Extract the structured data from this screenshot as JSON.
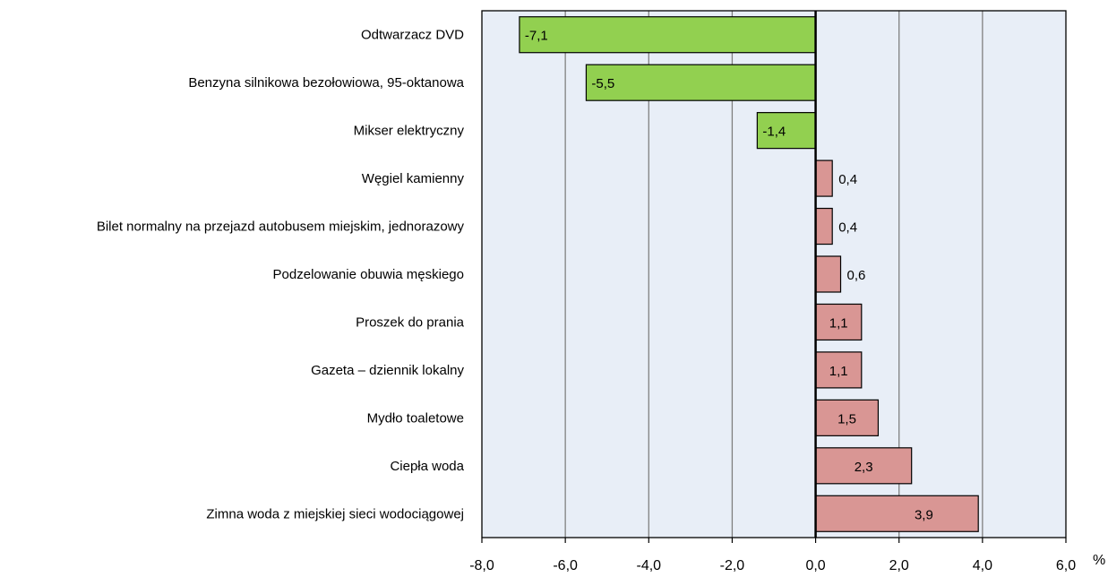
{
  "chart_data": {
    "type": "bar",
    "orientation": "horizontal",
    "categories": [
      "Odtwarzacz DVD",
      "Benzyna silnikowa bezołowiowa, 95-oktanowa",
      "Mikser elektryczny",
      "Węgiel kamienny",
      "Bilet normalny na przejazd autobusem miejskim, jednorazowy",
      "Podzelowanie obuwia męskiego",
      "Proszek do prania",
      "Gazeta – dziennik lokalny",
      "Mydło toaletowe",
      "Ciepła woda",
      "Zimna woda z miejskiej sieci wodociągowej"
    ],
    "values": [
      -7.1,
      -5.5,
      -1.4,
      0.4,
      0.4,
      0.6,
      1.1,
      1.1,
      1.5,
      2.3,
      3.9
    ],
    "data_labels": [
      "-7,1",
      "-5,5",
      "-1,4",
      "0,4",
      "0,4",
      "0,6",
      "1,1",
      "1,1",
      "1,5",
      "2,3",
      "3,9"
    ],
    "xlim": [
      -8,
      6
    ],
    "x_ticks": [
      -8,
      -6,
      -4,
      -2,
      0,
      2,
      4,
      6
    ],
    "x_tick_labels": [
      "-8,0",
      "-6,0",
      "-4,0",
      "-2,0",
      "0,0",
      "2,0",
      "4,0",
      "6,0"
    ],
    "x_unit": "%",
    "grid": true,
    "colors": {
      "negative": "#92d050",
      "positive": "#d99694",
      "plot_background": "#e8eef7",
      "gridline": "#808080"
    }
  }
}
